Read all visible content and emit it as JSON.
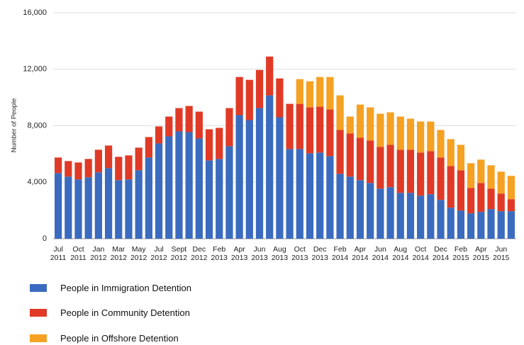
{
  "chart_data": {
    "type": "stacked-bar",
    "y_label": "Number of People",
    "categories": [
      "Jul 2011",
      null,
      "Oct 2011",
      null,
      "Jan 2012",
      null,
      "Mar 2012",
      null,
      "May 2012",
      null,
      "Jul 2012",
      null,
      "Sept 2012",
      null,
      "Dec 2012",
      null,
      "Feb 2013",
      null,
      "Apr 2013",
      null,
      "Jun 2013",
      null,
      "Aug 2013",
      null,
      "Oct 2013",
      null,
      "Dec 2013",
      null,
      "Feb 2014",
      null,
      "Apr 2014",
      null,
      "Jun 2014",
      null,
      "Aug 2014",
      null,
      "Oct 2014",
      null,
      "Dec 2014",
      null,
      "Feb 2015",
      null,
      "Apr 2015",
      null,
      "Jun 2015",
      null
    ],
    "series": [
      {
        "name": "People in Immigration Detention",
        "color": "#3a6bbf",
        "values": [
          4650,
          4400,
          4200,
          4350,
          4700,
          5000,
          4150,
          4200,
          4850,
          5750,
          6750,
          7250,
          7600,
          7550,
          7100,
          5550,
          5650,
          6550,
          8750,
          8400,
          9250,
          10150,
          8600,
          6350,
          6350,
          6050,
          6100,
          5850,
          4600,
          4400,
          4150,
          3950,
          3550,
          3650,
          3250,
          3250,
          3050,
          3150,
          2750,
          2200,
          2000,
          1800,
          1900,
          2100,
          1950,
          1950
        ]
      },
      {
        "name": "People in Community Detention",
        "color": "#e03a26",
        "values": [
          1100,
          1100,
          1200,
          1300,
          1600,
          1600,
          1650,
          1700,
          1600,
          1450,
          1200,
          1400,
          1650,
          1850,
          1900,
          2200,
          2200,
          2700,
          2700,
          2850,
          2700,
          2750,
          2750,
          3200,
          3200,
          3250,
          3250,
          3300,
          3100,
          3050,
          3000,
          3000,
          2950,
          3000,
          3050,
          3050,
          3050,
          3050,
          3000,
          2950,
          2850,
          1800,
          2050,
          1450,
          1250,
          850
        ]
      },
      {
        "name": "People in Offshore Detention",
        "color": "#f5a123",
        "values": [
          null,
          null,
          null,
          null,
          null,
          null,
          null,
          null,
          null,
          null,
          null,
          null,
          null,
          null,
          null,
          null,
          null,
          null,
          null,
          null,
          null,
          null,
          null,
          null,
          1750,
          1850,
          2100,
          2300,
          2450,
          1200,
          2350,
          2350,
          2350,
          2300,
          2350,
          2200,
          2200,
          2100,
          1950,
          1900,
          1800,
          1750,
          1650,
          1650,
          1550,
          1650
        ]
      }
    ],
    "ylim": [
      0,
      16000
    ],
    "yticks": [
      0,
      {
        "value": 4000,
        "label": "4,000"
      },
      {
        "value": 8000,
        "label": "8,000"
      },
      {
        "value": 12000,
        "label": "12,000"
      },
      {
        "value": 16000,
        "label": "16,000"
      }
    ],
    "grid": true
  }
}
